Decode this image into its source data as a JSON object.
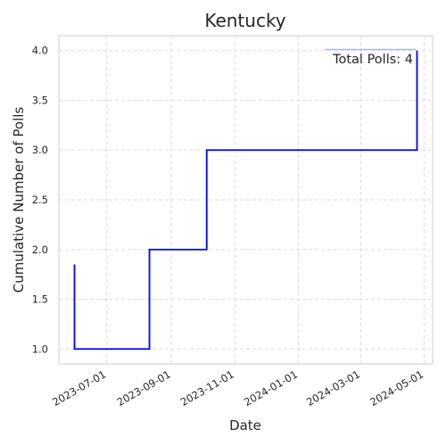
{
  "chart_data": {
    "type": "line",
    "title": "Kentucky",
    "xlabel": "Date",
    "ylabel": "Cumulative Number of Polls",
    "step": "post",
    "series": [
      {
        "x": [
          "2023-05-31",
          "2023-08-11",
          "2023-10-05",
          "2024-04-24"
        ],
        "y": [
          1,
          2,
          3,
          4
        ],
        "color": "#0000ff"
      }
    ],
    "xlim": [
      "2023-05-16",
      "2024-05-09"
    ],
    "ylim": [
      0.85,
      4.15
    ],
    "x_ticks": [
      "2023-07-01",
      "2023-09-01",
      "2023-11-01",
      "2024-01-01",
      "2024-03-01",
      "2024-05-01"
    ],
    "y_ticks": [
      1.0,
      1.5,
      2.0,
      2.5,
      3.0,
      3.5,
      4.0
    ],
    "grid": true,
    "annotation": "Total Polls: 4",
    "annotation_position": "top-right",
    "legend_color": "#aab4ff"
  }
}
